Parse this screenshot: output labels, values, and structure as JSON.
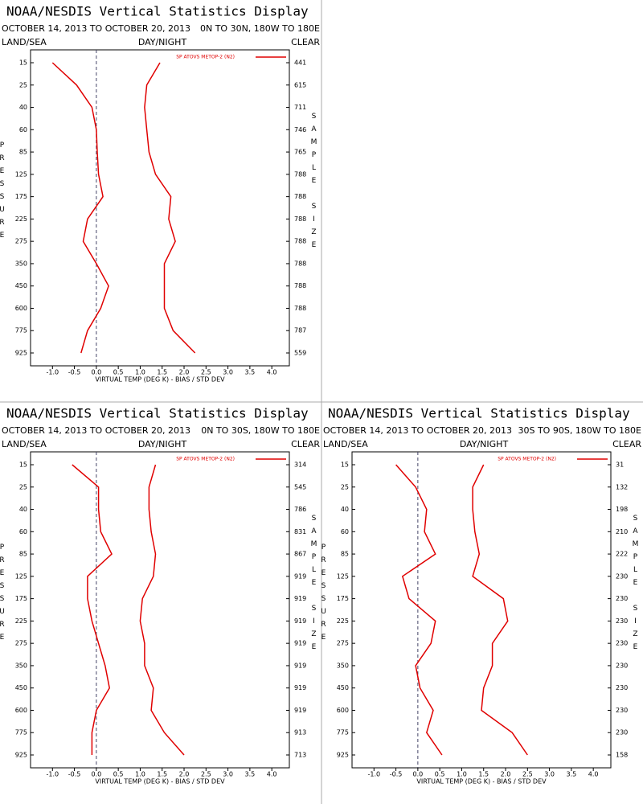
{
  "chart_data": [
    {
      "type": "line",
      "title": "NOAA/NESDIS Vertical Statistics Display",
      "subtitle": "OCTOBER 14, 2013 TO OCTOBER 20, 2013",
      "region": "0N TO 30N, 180W TO 180E",
      "left_label": "LAND/SEA",
      "center_label": "DAY/NIGHT",
      "right_label": "CLEAR",
      "y_label": "PRESSURE",
      "y2_label": "SAMPLE SIZE",
      "x_label": "VIRTUAL TEMP (DEG K) - BIAS / STD DEV",
      "legend": "SP ATOVS METOP-2 (N2)",
      "categories": [
        "15",
        "25",
        "40",
        "60",
        "85",
        "125",
        "175",
        "225",
        "275",
        "350",
        "450",
        "600",
        "775",
        "925"
      ],
      "sample_size": [
        441,
        615,
        711,
        746,
        765,
        788,
        788,
        788,
        788,
        788,
        788,
        788,
        787,
        559
      ],
      "series": [
        {
          "name": "bias",
          "color": "#e00000",
          "values": [
            -1.0,
            -0.45,
            -0.1,
            0.0,
            0.02,
            0.05,
            0.15,
            -0.2,
            -0.3,
            0.0,
            0.28,
            0.1,
            -0.2,
            -0.35
          ]
        },
        {
          "name": "std dev",
          "color": "#e00000",
          "values": [
            1.45,
            1.15,
            1.1,
            1.15,
            1.2,
            1.35,
            1.7,
            1.65,
            1.8,
            1.55,
            1.55,
            1.55,
            1.75,
            2.25
          ]
        }
      ],
      "xlim": [
        -1.5,
        4.4
      ],
      "xticks": [
        {
          "value": -1.0,
          "label": "-1.0"
        },
        -0.5,
        {
          "value": 0,
          "label": "0.0"
        },
        0.5,
        {
          "value": 1,
          "label": "1.0"
        },
        1.5,
        {
          "value": 2,
          "label": "2.0"
        },
        2.5,
        {
          "value": 3,
          "label": "3.0"
        },
        3.5,
        {
          "value": 4,
          "label": "4.0"
        }
      ]
    },
    {
      "type": "line",
      "title": "NOAA/NESDIS Vertical Statistics Display",
      "subtitle": "OCTOBER 14, 2013 TO OCTOBER 20, 2013",
      "region": "0N TO 30S, 180W TO 180E",
      "left_label": "LAND/SEA",
      "center_label": "DAY/NIGHT",
      "right_label": "CLEAR",
      "y_label": "PRESSURE",
      "y2_label": "SAMPLE SIZE",
      "x_label": "VIRTUAL TEMP (DEG K) - BIAS / STD DEV",
      "legend": "SP ATOVS METOP-2 (N2)",
      "categories": [
        "15",
        "25",
        "40",
        "60",
        "85",
        "125",
        "175",
        "225",
        "275",
        "350",
        "450",
        "600",
        "775",
        "925"
      ],
      "sample_size": [
        314,
        545,
        786,
        831,
        867,
        919,
        919,
        919,
        919,
        919,
        919,
        919,
        913,
        713
      ],
      "series": [
        {
          "name": "bias",
          "color": "#e00000",
          "values": [
            -0.55,
            0.05,
            0.05,
            0.1,
            0.35,
            -0.2,
            -0.2,
            -0.1,
            0.05,
            0.2,
            0.3,
            0.0,
            -0.1,
            -0.1
          ]
        },
        {
          "name": "std dev",
          "color": "#e00000",
          "values": [
            1.35,
            1.2,
            1.2,
            1.25,
            1.35,
            1.3,
            1.05,
            1.0,
            1.1,
            1.1,
            1.3,
            1.25,
            1.55,
            2.0
          ]
        }
      ],
      "xlim": [
        -1.5,
        4.4
      ],
      "xticks": [
        {
          "value": -1.0,
          "label": "-1.0"
        },
        -0.5,
        {
          "value": 0,
          "label": "0.0"
        },
        0.5,
        {
          "value": 1,
          "label": "1.0"
        },
        1.5,
        {
          "value": 2,
          "label": "2.0"
        },
        2.5,
        {
          "value": 3,
          "label": "3.0"
        },
        3.5,
        {
          "value": 4,
          "label": "4.0"
        }
      ]
    },
    {
      "type": "line",
      "title": "NOAA/NESDIS Vertical Statistics Display",
      "subtitle": "OCTOBER 14, 2013 TO OCTOBER 20, 2013",
      "region": "30S TO 90S, 180W TO 180E",
      "left_label": "LAND/SEA",
      "center_label": "DAY/NIGHT",
      "right_label": "CLEAR",
      "y_label": "PRESSURE",
      "y2_label": "SAMPLE SIZE",
      "x_label": "VIRTUAL TEMP (DEG K) - BIAS / STD DEV",
      "legend": "SP ATOVS METOP-2 (N2)",
      "categories": [
        "15",
        "25",
        "40",
        "60",
        "85",
        "125",
        "175",
        "225",
        "275",
        "350",
        "450",
        "600",
        "775",
        "925"
      ],
      "sample_size": [
        31,
        132,
        198,
        210,
        222,
        230,
        230,
        230,
        230,
        230,
        230,
        230,
        230,
        158
      ],
      "series": [
        {
          "name": "bias",
          "color": "#e00000",
          "values": [
            -0.5,
            -0.05,
            0.2,
            0.15,
            0.4,
            -0.35,
            -0.2,
            0.4,
            0.3,
            -0.05,
            0.05,
            0.35,
            0.2,
            0.55
          ]
        },
        {
          "name": "std dev",
          "color": "#e00000",
          "values": [
            1.5,
            1.25,
            1.25,
            1.3,
            1.4,
            1.25,
            1.95,
            2.05,
            1.7,
            1.7,
            1.5,
            1.45,
            2.15,
            2.5
          ]
        }
      ],
      "xlim": [
        -1.5,
        4.4
      ],
      "xticks": [
        {
          "value": -1.0,
          "label": "-1.0"
        },
        -0.5,
        {
          "value": 0,
          "label": "0.0"
        },
        0.5,
        {
          "value": 1,
          "label": "1.0"
        },
        1.5,
        {
          "value": 2,
          "label": "2.0"
        },
        2.5,
        {
          "value": 3,
          "label": "3.0"
        },
        3.5,
        {
          "value": 4,
          "label": "4.0"
        }
      ]
    }
  ]
}
